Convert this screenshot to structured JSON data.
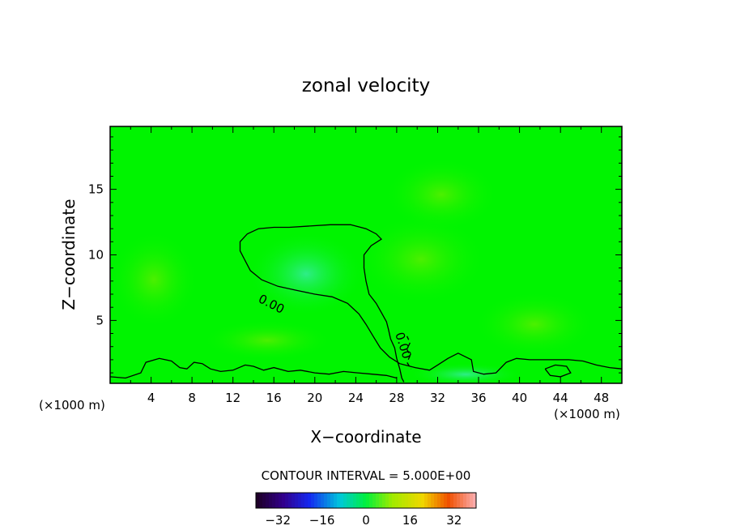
{
  "chart_data": {
    "type": "heatmap",
    "title": "zonal velocity",
    "xlabel": "X−coordinate",
    "ylabel": "Z−coordinate",
    "x_unit_left": "(×1000 m)",
    "x_unit_right": "(×1000 m)",
    "xlim": [
      0,
      50
    ],
    "ylim": [
      0.2,
      19.8
    ],
    "x_ticks": [
      4,
      8,
      12,
      16,
      20,
      24,
      28,
      32,
      36,
      40,
      44,
      48
    ],
    "x_tick_labels": [
      "4",
      "8",
      "12",
      "16",
      "20",
      "24",
      "28",
      "32",
      "36",
      "40",
      "44",
      "48"
    ],
    "y_ticks": [
      5,
      10,
      15
    ],
    "y_tick_labels": [
      "5",
      "10",
      "15"
    ],
    "contour_label_1": "0.00",
    "contour_label_2": "0.00",
    "contour_interval_text": "CONTOUR INTERVAL = 5.000E+00",
    "colorbar": {
      "range": [
        -40,
        40
      ],
      "step": 5,
      "tick_values": [
        -32,
        -16,
        0,
        16,
        32
      ],
      "tick_labels": [
        "−32",
        "−16",
        "0",
        "16",
        "32"
      ]
    },
    "field_colors": {
      "zero_band": "#00f400",
      "weak_negative": "#2ef08a",
      "weak_positive": "#5ef000"
    },
    "zero_contour_main": [
      [
        13.1,
        9.7
      ],
      [
        12.7,
        10.3
      ],
      [
        12.7,
        11.0
      ],
      [
        13.4,
        11.6
      ],
      [
        14.5,
        12.0
      ],
      [
        16.0,
        12.1
      ],
      [
        17.5,
        12.1
      ],
      [
        19.5,
        12.2
      ],
      [
        21.5,
        12.3
      ],
      [
        23.5,
        12.3
      ],
      [
        25.0,
        12.0
      ],
      [
        26.0,
        11.6
      ],
      [
        26.5,
        11.2
      ],
      [
        25.5,
        10.7
      ],
      [
        24.8,
        10.0
      ],
      [
        24.8,
        9.0
      ],
      [
        25.0,
        8.0
      ],
      [
        25.3,
        7.0
      ],
      [
        26.0,
        6.3
      ],
      [
        26.5,
        5.6
      ],
      [
        27.0,
        4.9
      ],
      [
        27.2,
        4.3
      ],
      [
        27.4,
        3.6
      ],
      [
        27.8,
        2.9
      ],
      [
        28.0,
        2.1
      ],
      [
        28.3,
        1.3
      ],
      [
        28.5,
        0.6
      ],
      [
        28.7,
        0.3
      ]
    ],
    "zero_contour_main_lower": [
      [
        13.1,
        9.7
      ],
      [
        13.7,
        8.8
      ],
      [
        14.8,
        8.1
      ],
      [
        16.4,
        7.6
      ],
      [
        18.2,
        7.3
      ],
      [
        20.0,
        7.0
      ],
      [
        21.7,
        6.8
      ],
      [
        23.2,
        6.3
      ],
      [
        24.3,
        5.5
      ],
      [
        25.0,
        4.7
      ],
      [
        25.7,
        3.8
      ],
      [
        26.4,
        2.9
      ],
      [
        27.3,
        2.2
      ],
      [
        28.3,
        1.7
      ],
      [
        29.8,
        1.4
      ],
      [
        31.2,
        1.2
      ],
      [
        32.0,
        1.6
      ],
      [
        33.0,
        2.1
      ],
      [
        34.0,
        2.5
      ],
      [
        35.3,
        2.0
      ],
      [
        35.5,
        1.1
      ],
      [
        36.5,
        0.9
      ],
      [
        37.7,
        1.0
      ],
      [
        38.7,
        1.8
      ],
      [
        39.7,
        2.1
      ],
      [
        41.0,
        2.0
      ],
      [
        42.2,
        2.0
      ],
      [
        43.5,
        2.0
      ],
      [
        44.8,
        2.0
      ],
      [
        46.2,
        1.9
      ],
      [
        47.5,
        1.6
      ],
      [
        48.8,
        1.4
      ],
      [
        50.0,
        1.3
      ]
    ],
    "zero_contour_low_left": [
      [
        0,
        0.7
      ],
      [
        1.5,
        0.6
      ],
      [
        3.0,
        1.0
      ],
      [
        3.5,
        1.8
      ],
      [
        4.8,
        2.1
      ],
      [
        6.0,
        1.9
      ],
      [
        6.8,
        1.4
      ],
      [
        7.5,
        1.3
      ],
      [
        8.2,
        1.8
      ],
      [
        9.0,
        1.7
      ],
      [
        9.8,
        1.3
      ],
      [
        10.8,
        1.1
      ],
      [
        12.0,
        1.2
      ],
      [
        13.2,
        1.6
      ],
      [
        14.0,
        1.5
      ],
      [
        15.0,
        1.2
      ],
      [
        16.0,
        1.4
      ],
      [
        17.4,
        1.1
      ],
      [
        18.6,
        1.2
      ],
      [
        20.0,
        1.0
      ],
      [
        21.4,
        0.9
      ],
      [
        22.8,
        1.1
      ],
      [
        24.2,
        1.0
      ],
      [
        25.6,
        0.9
      ],
      [
        27.0,
        0.8
      ],
      [
        28.0,
        0.6
      ]
    ],
    "zero_contour_dashes": [
      [
        29.0,
        3.8
      ],
      [
        29.3,
        3.3
      ],
      [
        29.0,
        2.8
      ],
      [
        29.3,
        2.3
      ],
      [
        29.0,
        1.8
      ],
      [
        29.4,
        1.3
      ]
    ],
    "zero_contour_cell": [
      [
        42.5,
        1.3
      ],
      [
        43.5,
        1.6
      ],
      [
        44.6,
        1.5
      ],
      [
        45.0,
        1.0
      ],
      [
        44.0,
        0.7
      ],
      [
        43.0,
        0.8
      ],
      [
        42.5,
        1.3
      ]
    ]
  }
}
